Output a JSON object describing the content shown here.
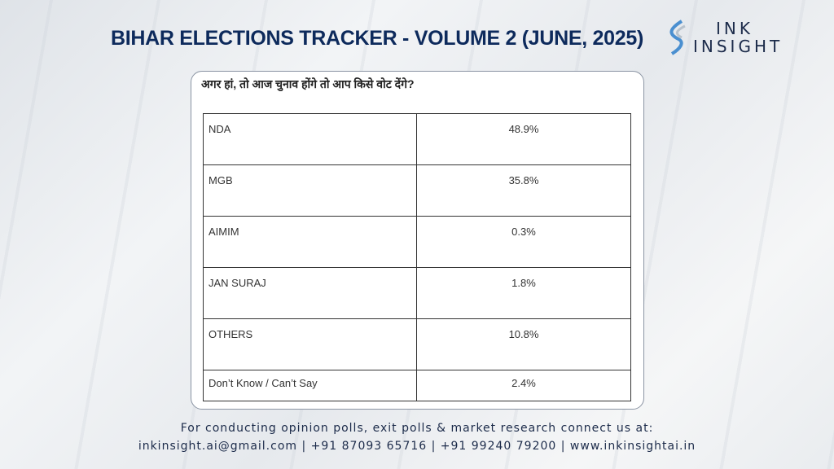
{
  "title": "BIHAR ELECTIONS TRACKER - VOLUME 2 (JUNE, 2025)",
  "logo": {
    "line1": "INK",
    "line2": "INSIGHT"
  },
  "question": "अगर हां, तो आज चुनाव होंगे तो आप किसे वोट देंगे?",
  "rows": [
    {
      "label": "NDA",
      "value": "48.9%"
    },
    {
      "label": "MGB",
      "value": "35.8%"
    },
    {
      "label": "AIMIM",
      "value": "0.3%"
    },
    {
      "label": "JAN SURAJ",
      "value": "1.8%"
    },
    {
      "label": "OTHERS",
      "value": "10.8%"
    },
    {
      "label": "Don’t Know / Can’t Say",
      "value": "2.4%"
    }
  ],
  "footer": {
    "line1": "For conducting opinion polls, exit polls & market research connect us at:",
    "line2": "inkinsight.ai@gmail.com | +91 87093 65716 | +91 99240 79200 | www.inkinsightai.in"
  }
}
